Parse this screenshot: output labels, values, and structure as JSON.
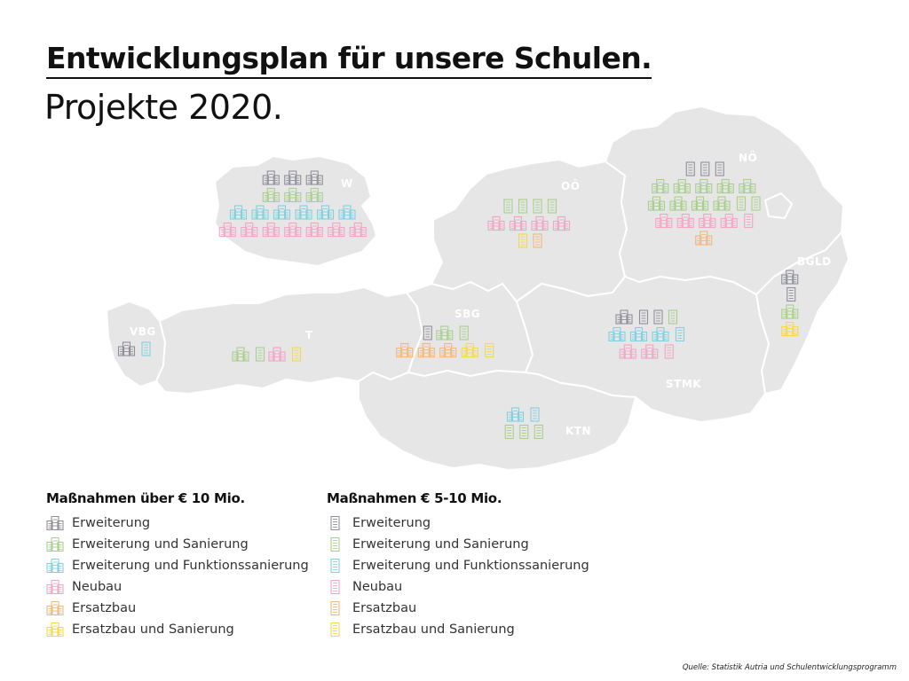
{
  "header": {
    "title": "Entwicklungsplan für unsere Schulen.",
    "subtitle": "Projekte 2020."
  },
  "map": {
    "regions": [
      {
        "id": "wien",
        "label": "W"
      },
      {
        "id": "vorarlberg",
        "label": "VBG"
      },
      {
        "id": "tirol",
        "label": "T"
      },
      {
        "id": "salzburg",
        "label": "SBG"
      },
      {
        "id": "oberoesterreich",
        "label": "OÖ"
      },
      {
        "id": "niederoesterreich",
        "label": "NÖ"
      },
      {
        "id": "burgenland",
        "label": "BGLD"
      },
      {
        "id": "steiermark",
        "label": "STMK"
      },
      {
        "id": "kaernten",
        "label": "KTN"
      }
    ],
    "projects": {
      "wien": [
        [
          "large:erweiterung",
          "large:erweiterung",
          "large:erweiterung"
        ],
        [
          "large:erweiterung_sanierung",
          "large:erweiterung_sanierung",
          "large:erweiterung_sanierung"
        ],
        [
          "large:funktionssanierung",
          "large:funktionssanierung",
          "large:funktionssanierung",
          "large:funktionssanierung",
          "large:funktionssanierung",
          "large:funktionssanierung"
        ],
        [
          "large:neubau",
          "large:neubau",
          "large:neubau",
          "large:neubau",
          "large:neubau",
          "large:neubau",
          "large:neubau"
        ]
      ],
      "vorarlberg": [
        [
          "large:erweiterung",
          "medium:funktionssanierung"
        ]
      ],
      "tirol": [
        [
          "large:erweiterung_sanierung",
          "medium:erweiterung_sanierung",
          "large:neubau",
          "medium:ersatzbau_sanierung"
        ]
      ],
      "salzburg": [
        [
          "medium:erweiterung",
          "large:erweiterung_sanierung",
          "medium:erweiterung_sanierung"
        ],
        [
          "large:ersatzbau",
          "large:ersatzbau",
          "large:ersatzbau",
          "large:ersatzbau_sanierung",
          "medium:ersatzbau_sanierung"
        ]
      ],
      "oberoesterreich": [
        [
          "medium:erweiterung_sanierung",
          "medium:erweiterung_sanierung",
          "medium:erweiterung_sanierung",
          "medium:erweiterung_sanierung"
        ],
        [
          "large:neubau",
          "large:neubau",
          "large:neubau",
          "large:neubau"
        ],
        [
          "medium:ersatzbau_sanierung",
          "medium:ersatzbau"
        ]
      ],
      "niederoesterreich": [
        [
          "medium:erweiterung",
          "medium:erweiterung",
          "medium:erweiterung"
        ],
        [
          "large:erweiterung_sanierung",
          "large:erweiterung_sanierung",
          "large:erweiterung_sanierung",
          "large:erweiterung_sanierung",
          "large:erweiterung_sanierung"
        ],
        [
          "large:erweiterung_sanierung",
          "large:erweiterung_sanierung",
          "large:erweiterung_sanierung",
          "large:erweiterung_sanierung",
          "medium:erweiterung_sanierung",
          "medium:erweiterung_sanierung"
        ],
        [
          "large:neubau",
          "large:neubau",
          "large:neubau",
          "large:neubau",
          "medium:neubau"
        ],
        [
          "large:ersatzbau"
        ]
      ],
      "burgenland": [
        [
          "large:erweiterung"
        ],
        [
          "medium:erweiterung"
        ],
        [
          "large:erweiterung_sanierung"
        ],
        [
          "large:ersatzbau_sanierung"
        ]
      ],
      "steiermark": [
        [
          "large:erweiterung",
          "medium:erweiterung",
          "medium:erweiterung",
          "medium:erweiterung_sanierung"
        ],
        [
          "large:funktionssanierung",
          "large:funktionssanierung",
          "large:funktionssanierung",
          "medium:funktionssanierung"
        ],
        [
          "large:neubau",
          "large:neubau",
          "medium:neubau"
        ]
      ],
      "kaernten": [
        [
          "large:funktionssanierung",
          "medium:funktionssanierung"
        ],
        [
          "medium:erweiterung_sanierung",
          "medium:erweiterung_sanierung",
          "medium:erweiterung_sanierung"
        ]
      ]
    }
  },
  "categories": {
    "erweiterung": {
      "label": "Erweiterung",
      "color": "#8f8f99"
    },
    "erweiterung_sanierung": {
      "label": "Erweiterung und Sanierung",
      "color": "#a9cf8c"
    },
    "funktionssanierung": {
      "label": "Erweiterung und Funktionssanierung",
      "color": "#84d0e0"
    },
    "neubau": {
      "label": "Neubau",
      "color": "#f2a6c4"
    },
    "ersatzbau": {
      "label": "Ersatzbau",
      "color": "#f3b77b"
    },
    "ersatzbau_sanierung": {
      "label": "Ersatzbau und Sanierung",
      "color": "#f6d94a"
    }
  },
  "legend": {
    "large": {
      "heading": "Maßnahmen über € 10 Mio.",
      "icon": "large-school-building-icon",
      "items": [
        {
          "key": "erweiterung",
          "label": "Erweiterung"
        },
        {
          "key": "erweiterung_sanierung",
          "label": "Erweiterung und Sanierung"
        },
        {
          "key": "funktionssanierung",
          "label": "Erweiterung und Funktionssanierung"
        },
        {
          "key": "neubau",
          "label": "Neubau"
        },
        {
          "key": "ersatzbau",
          "label": "Ersatzbau"
        },
        {
          "key": "ersatzbau_sanierung",
          "label": "Ersatzbau und Sanierung"
        }
      ]
    },
    "medium": {
      "heading": "Maßnahmen € 5-10 Mio.",
      "icon": "small-school-building-icon",
      "items": [
        {
          "key": "erweiterung",
          "label": "Erweiterung"
        },
        {
          "key": "erweiterung_sanierung",
          "label": "Erweiterung und Sanierung"
        },
        {
          "key": "funktionssanierung",
          "label": "Erweiterung und Funktionssanierung"
        },
        {
          "key": "neubau",
          "label": "Neubau"
        },
        {
          "key": "ersatzbau",
          "label": "Ersatzbau"
        },
        {
          "key": "ersatzbau_sanierung",
          "label": "Ersatzbau und Sanierung"
        }
      ]
    }
  },
  "map_colors": {
    "land": "#e6e6e6",
    "border": "#ffffff"
  },
  "source": "Quelle: Statistik Autria und Schulentwicklungsprogramm"
}
